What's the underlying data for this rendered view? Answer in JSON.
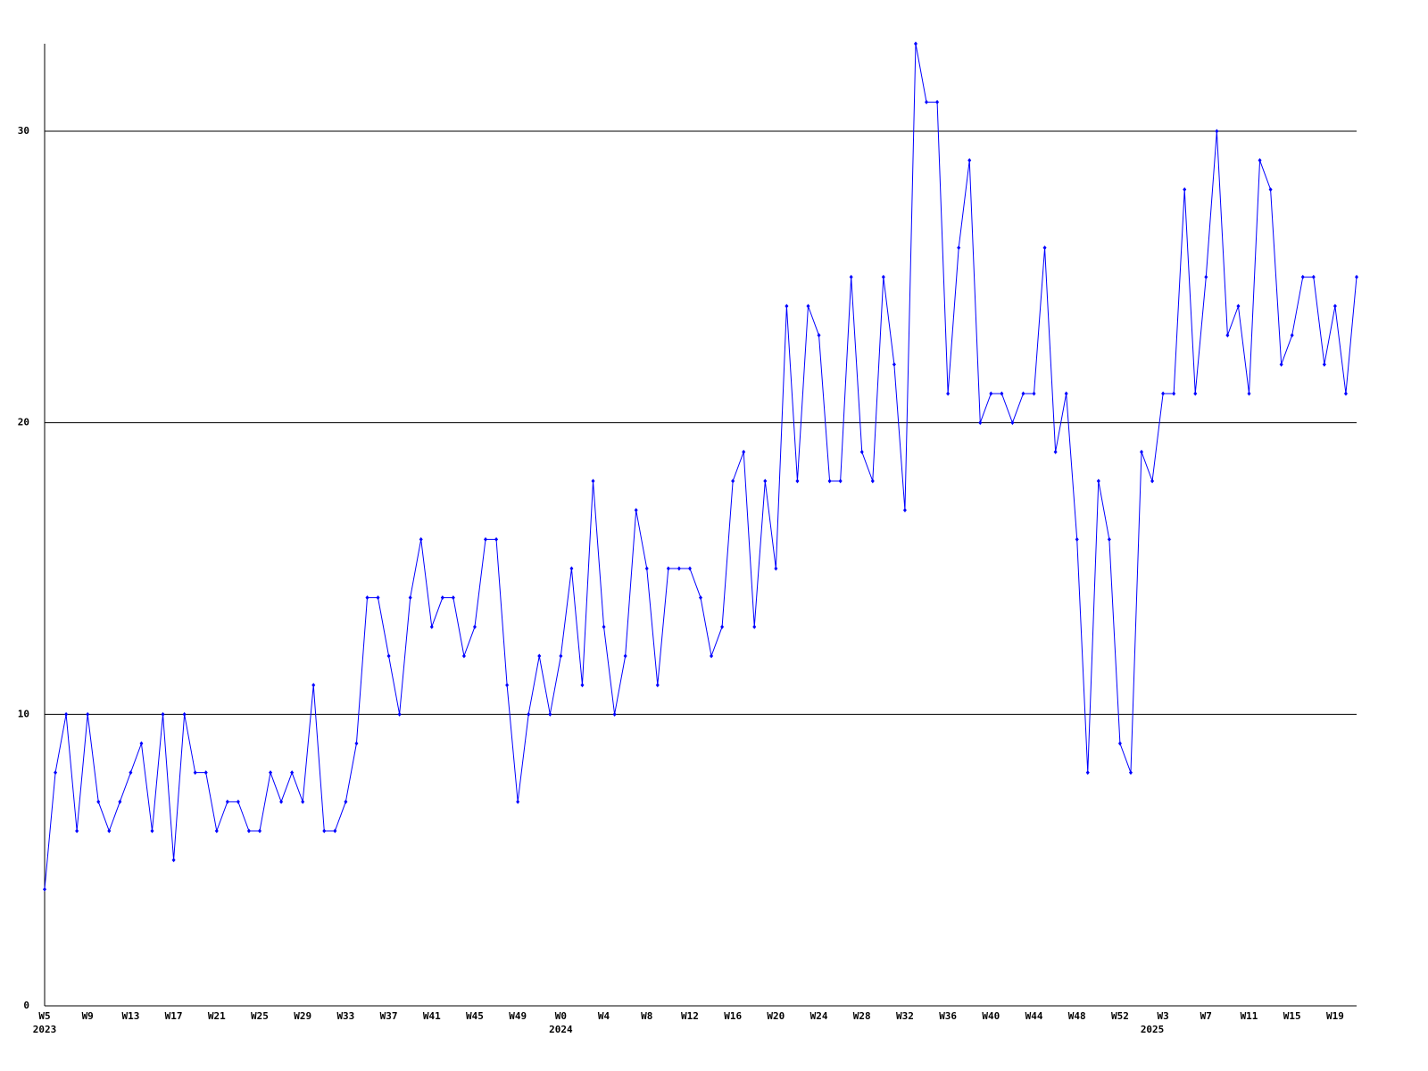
{
  "chart_data": {
    "type": "line",
    "categories": [
      "W5",
      null,
      null,
      null,
      "W9",
      null,
      null,
      null,
      "W13",
      null,
      null,
      null,
      "W17",
      null,
      null,
      null,
      "W21",
      null,
      null,
      null,
      "W25",
      null,
      null,
      null,
      "W29",
      null,
      null,
      null,
      "W33",
      null,
      null,
      null,
      "W37",
      null,
      null,
      null,
      "W41",
      null,
      null,
      null,
      "W45",
      null,
      null,
      null,
      "W49",
      null,
      null,
      null,
      "W0",
      null,
      null,
      null,
      "W4",
      null,
      null,
      null,
      "W8",
      null,
      null,
      null,
      "W12",
      null,
      null,
      null,
      "W16",
      null,
      null,
      null,
      "W20",
      null,
      null,
      null,
      "W24",
      null,
      null,
      null,
      "W28",
      null,
      null,
      null,
      "W32",
      null,
      null,
      null,
      "W36",
      null,
      null,
      null,
      "W40",
      null,
      null,
      null,
      "W44",
      null,
      null,
      null,
      "W48",
      null,
      null,
      null,
      "W52",
      null,
      null,
      null,
      "W3",
      null,
      null,
      null,
      "W7",
      null,
      null,
      null,
      "W11",
      null,
      null,
      null,
      "W15",
      null,
      null,
      null,
      "W19",
      null,
      null
    ],
    "category_years": [
      "2023",
      null,
      null,
      null,
      null,
      null,
      null,
      null,
      null,
      null,
      null,
      null,
      null,
      null,
      null,
      null,
      null,
      null,
      null,
      null,
      null,
      null,
      null,
      null,
      null,
      null,
      null,
      null,
      null,
      null,
      null,
      null,
      null,
      null,
      null,
      null,
      null,
      null,
      null,
      null,
      null,
      null,
      null,
      null,
      null,
      null,
      null,
      null,
      "2024",
      null,
      null,
      null,
      null,
      null,
      null,
      null,
      null,
      null,
      null,
      null,
      null,
      null,
      null,
      null,
      null,
      null,
      null,
      null,
      null,
      null,
      null,
      null,
      null,
      null,
      null,
      null,
      null,
      null,
      null,
      null,
      null,
      null,
      null,
      null,
      null,
      null,
      null,
      null,
      null,
      null,
      null,
      null,
      null,
      null,
      null,
      null,
      null,
      null,
      null,
      null,
      null,
      null,
      null,
      "2025",
      null,
      null,
      null,
      null,
      null,
      null,
      null,
      null,
      null,
      null,
      null,
      null,
      null,
      null,
      null,
      null,
      null,
      null,
      null,
      null,
      null
    ],
    "series": [
      {
        "color": "#0000ff",
        "values": [
          4,
          8,
          10,
          6,
          10,
          7,
          6,
          7,
          8,
          9,
          6,
          10,
          5,
          10,
          8,
          8,
          6,
          7,
          7,
          6,
          6,
          8,
          7,
          8,
          7,
          11,
          6,
          6,
          7,
          9,
          14,
          14,
          12,
          10,
          14,
          16,
          13,
          14,
          14,
          12,
          13,
          16,
          16,
          11,
          7,
          10,
          12,
          10,
          12,
          15,
          11,
          18,
          13,
          10,
          12,
          17,
          15,
          11,
          15,
          15,
          15,
          14,
          12,
          13,
          18,
          19,
          13,
          18,
          15,
          24,
          18,
          24,
          23,
          18,
          18,
          25,
          19,
          18,
          25,
          22,
          17,
          33,
          31,
          31,
          21,
          26,
          29,
          20,
          21,
          21,
          20,
          21,
          21,
          26,
          19,
          21,
          16,
          8,
          18,
          16,
          9,
          8,
          19,
          18,
          21,
          21,
          28,
          21,
          25,
          30,
          23,
          24,
          21,
          29,
          28,
          22,
          23,
          25,
          25,
          22,
          24,
          21,
          25
        ]
      }
    ],
    "ylim": [
      0,
      33
    ],
    "yticks": [
      0,
      10,
      20,
      30
    ],
    "grid": true
  }
}
